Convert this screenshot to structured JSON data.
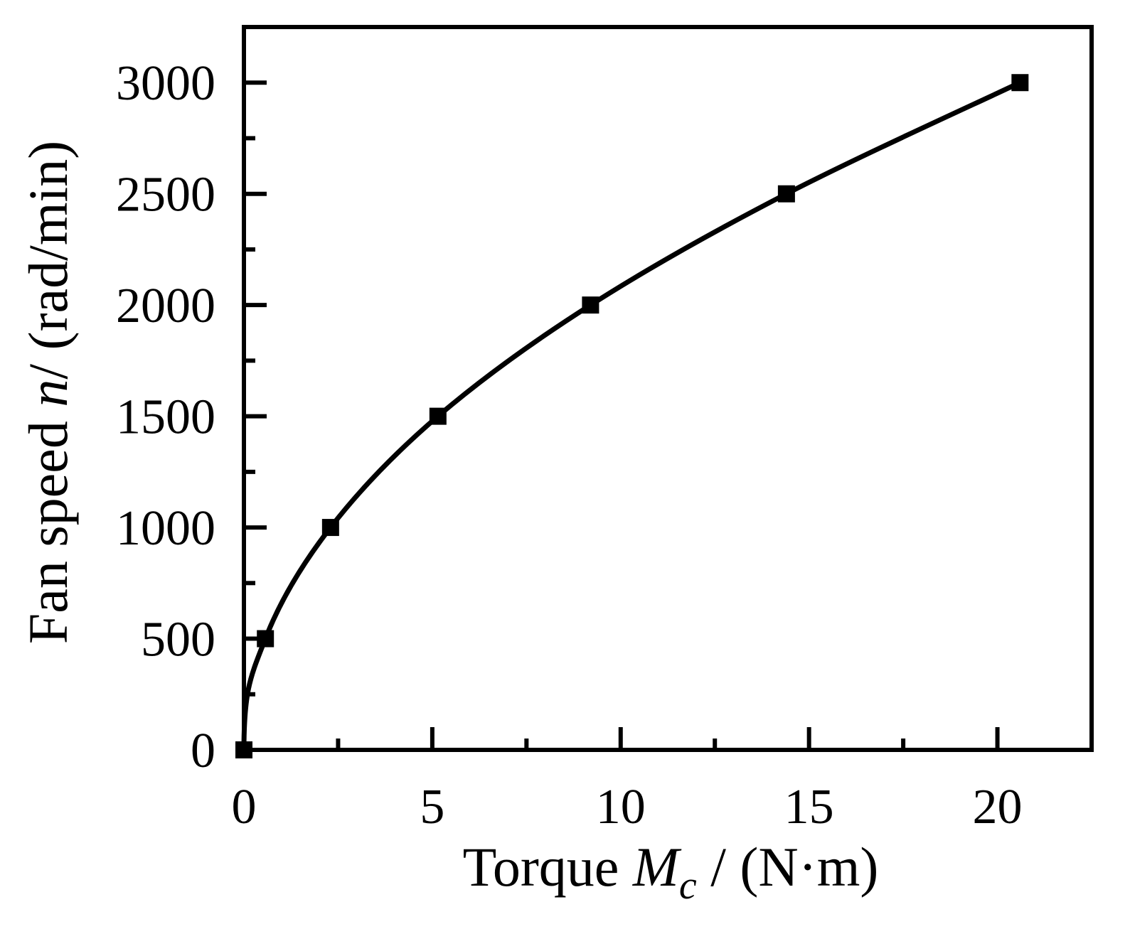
{
  "chart_data": {
    "type": "line",
    "xlabel": {
      "prefix": "Torque ",
      "symbol": "M",
      "subscript": "c",
      "suffix": " / (N·m)"
    },
    "ylabel": {
      "prefix": "Fan speed ",
      "symbol": "n",
      "suffix": "/ (rad/min)"
    },
    "xlim": [
      0,
      22.5
    ],
    "ylim": [
      0,
      3250
    ],
    "x_ticks": [
      0,
      5,
      10,
      15,
      20
    ],
    "x_tick_labels": [
      "0",
      "5",
      "10",
      "15",
      "20"
    ],
    "y_ticks": [
      0,
      500,
      1000,
      1500,
      2000,
      2500,
      3000
    ],
    "y_tick_labels": [
      "0",
      "500",
      "1000",
      "1500",
      "2000",
      "2500",
      "3000"
    ],
    "marker": "square",
    "line_color": "#000000",
    "series": [
      {
        "x": [
          0,
          0.57,
          2.3,
          5.15,
          9.2,
          14.4,
          20.6
        ],
        "y": [
          0,
          500,
          1000,
          1500,
          2000,
          2500,
          3000
        ]
      }
    ],
    "grid": false,
    "legend": "none"
  }
}
